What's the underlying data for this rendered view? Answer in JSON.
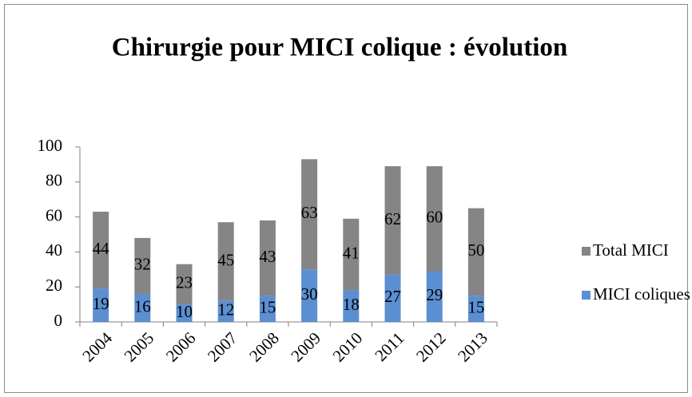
{
  "chart_data": {
    "type": "bar",
    "stacked": true,
    "title": "Chirurgie pour MICI colique : évolution",
    "categories": [
      "2004",
      "2005",
      "2006",
      "2007",
      "2008",
      "2009",
      "2010",
      "2011",
      "2012",
      "2013"
    ],
    "series": [
      {
        "name": "MICI coliques",
        "color": "#5b8fd1",
        "values": [
          19,
          16,
          10,
          12,
          15,
          30,
          18,
          27,
          29,
          15
        ]
      },
      {
        "name": "Total MICI",
        "color": "#858585",
        "values": [
          44,
          32,
          23,
          45,
          43,
          63,
          41,
          62,
          60,
          50
        ]
      }
    ],
    "ylim": [
      0,
      100
    ],
    "yticks": [
      0,
      20,
      40,
      60,
      80,
      100
    ],
    "grid": false,
    "legend": "right"
  }
}
